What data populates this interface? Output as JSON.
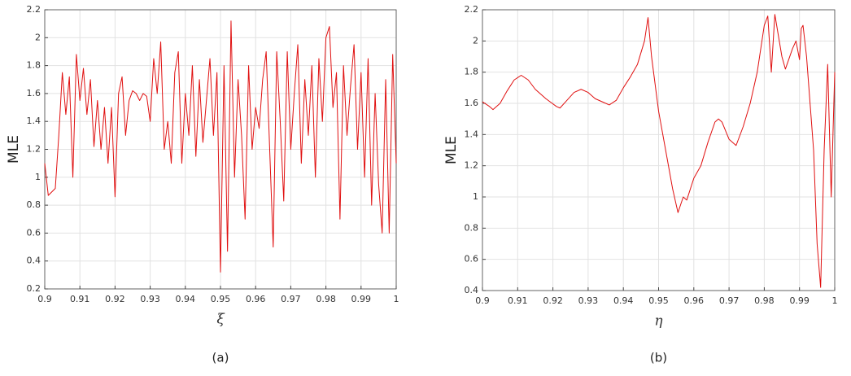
{
  "chart_data": [
    {
      "type": "line",
      "caption": "(a)",
      "xlabel": "ξ",
      "ylabel": "MLE",
      "color": "#e01010",
      "grid": true,
      "xlim": [
        0.9,
        1
      ],
      "xticks": [
        0.9,
        0.91,
        0.92,
        0.93,
        0.94,
        0.95,
        0.96,
        0.97,
        0.98,
        0.99,
        1
      ],
      "ylim": [
        0.2,
        2.2
      ],
      "yticks": [
        0.2,
        0.4,
        0.6,
        0.8,
        1,
        1.2,
        1.4,
        1.6,
        1.8,
        2,
        2.2
      ],
      "x": [
        0.9,
        0.901,
        0.903,
        0.904,
        0.905,
        0.906,
        0.907,
        0.908,
        0.909,
        0.91,
        0.911,
        0.912,
        0.913,
        0.914,
        0.915,
        0.916,
        0.917,
        0.918,
        0.919,
        0.92,
        0.921,
        0.922,
        0.923,
        0.924,
        0.925,
        0.926,
        0.927,
        0.928,
        0.929,
        0.93,
        0.931,
        0.932,
        0.933,
        0.934,
        0.935,
        0.936,
        0.937,
        0.938,
        0.939,
        0.94,
        0.941,
        0.942,
        0.943,
        0.944,
        0.945,
        0.946,
        0.947,
        0.948,
        0.949,
        0.95,
        0.951,
        0.952,
        0.953,
        0.954,
        0.955,
        0.956,
        0.957,
        0.958,
        0.959,
        0.96,
        0.961,
        0.962,
        0.963,
        0.964,
        0.965,
        0.966,
        0.967,
        0.968,
        0.969,
        0.97,
        0.971,
        0.972,
        0.973,
        0.974,
        0.975,
        0.976,
        0.977,
        0.978,
        0.979,
        0.98,
        0.981,
        0.982,
        0.983,
        0.984,
        0.985,
        0.986,
        0.987,
        0.988,
        0.989,
        0.99,
        0.991,
        0.992,
        0.993,
        0.994,
        0.995,
        0.996,
        0.997,
        0.998,
        0.999,
        1
      ],
      "values": [
        1.1,
        0.87,
        0.92,
        1.3,
        1.75,
        1.45,
        1.72,
        1.0,
        1.88,
        1.55,
        1.78,
        1.45,
        1.7,
        1.22,
        1.55,
        1.2,
        1.5,
        1.1,
        1.5,
        0.86,
        1.6,
        1.72,
        1.3,
        1.55,
        1.62,
        1.6,
        1.55,
        1.6,
        1.58,
        1.4,
        1.85,
        1.6,
        1.97,
        1.2,
        1.4,
        1.1,
        1.75,
        1.9,
        1.1,
        1.6,
        1.3,
        1.8,
        1.15,
        1.7,
        1.25,
        1.55,
        1.85,
        1.3,
        1.75,
        0.32,
        1.8,
        0.47,
        2.12,
        1.0,
        1.7,
        1.3,
        0.7,
        1.8,
        1.2,
        1.5,
        1.35,
        1.7,
        1.9,
        1.2,
        0.5,
        1.9,
        1.4,
        0.83,
        1.9,
        1.2,
        1.6,
        1.95,
        1.1,
        1.7,
        1.3,
        1.8,
        1.0,
        1.85,
        1.4,
        2.0,
        2.08,
        1.5,
        1.75,
        0.7,
        1.8,
        1.3,
        1.65,
        1.95,
        1.2,
        1.75,
        1.0,
        1.85,
        0.8,
        1.6,
        0.95,
        0.6,
        1.7,
        0.6,
        1.88,
        1.1
      ]
    },
    {
      "type": "line",
      "caption": "(b)",
      "xlabel": "η",
      "ylabel": "MLE",
      "color": "#e01010",
      "grid": true,
      "xlim": [
        0.9,
        1
      ],
      "xticks": [
        0.9,
        0.91,
        0.92,
        0.93,
        0.94,
        0.95,
        0.96,
        0.97,
        0.98,
        0.99,
        1
      ],
      "ylim": [
        0.4,
        2.2
      ],
      "yticks": [
        0.4,
        0.6,
        0.8,
        1,
        1.2,
        1.4,
        1.6,
        1.8,
        2,
        2.2
      ],
      "x": [
        0.9,
        0.902,
        0.903,
        0.905,
        0.907,
        0.909,
        0.911,
        0.913,
        0.915,
        0.918,
        0.921,
        0.922,
        0.924,
        0.926,
        0.928,
        0.93,
        0.932,
        0.935,
        0.936,
        0.938,
        0.94,
        0.942,
        0.944,
        0.946,
        0.947,
        0.948,
        0.95,
        0.952,
        0.954,
        0.9555,
        0.957,
        0.958,
        0.96,
        0.962,
        0.964,
        0.966,
        0.967,
        0.968,
        0.97,
        0.972,
        0.974,
        0.976,
        0.978,
        0.98,
        0.981,
        0.982,
        0.983,
        0.985,
        0.986,
        0.988,
        0.989,
        0.99,
        0.9905,
        0.991,
        0.992,
        0.994,
        0.995,
        0.996,
        0.997,
        0.998,
        0.999,
        1
      ],
      "values": [
        1.61,
        1.58,
        1.56,
        1.6,
        1.68,
        1.75,
        1.78,
        1.75,
        1.69,
        1.63,
        1.58,
        1.57,
        1.62,
        1.67,
        1.69,
        1.67,
        1.63,
        1.6,
        1.59,
        1.62,
        1.7,
        1.77,
        1.85,
        2.0,
        2.15,
        1.9,
        1.55,
        1.3,
        1.05,
        0.9,
        1.0,
        0.98,
        1.12,
        1.2,
        1.35,
        1.48,
        1.5,
        1.48,
        1.37,
        1.33,
        1.45,
        1.6,
        1.8,
        2.1,
        2.16,
        1.8,
        2.17,
        1.9,
        1.82,
        1.95,
        2.0,
        1.88,
        2.08,
        2.1,
        1.9,
        1.3,
        0.7,
        0.42,
        1.3,
        1.85,
        1.0,
        1.8
      ]
    }
  ]
}
